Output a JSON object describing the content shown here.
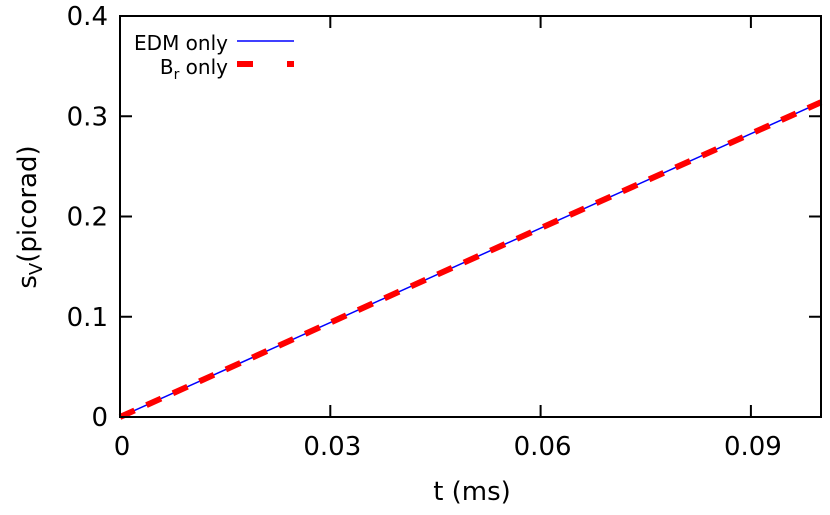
{
  "chart_data": {
    "type": "line",
    "xlabel": "t (ms)",
    "ylabel_main": "s",
    "ylabel_sub": "V",
    "ylabel_rest": "(picorad)",
    "xlim": [
      0,
      0.1
    ],
    "ylim": [
      0,
      0.4
    ],
    "xticks": [
      0,
      0.03,
      0.06,
      0.09
    ],
    "xtick_labels": [
      "0",
      "0.03",
      "0.06",
      "0.09"
    ],
    "yticks": [
      0,
      0.1,
      0.2,
      0.3,
      0.4
    ],
    "ytick_labels": [
      "0",
      "0.1",
      "0.2",
      "0.3",
      "0.4"
    ],
    "grid": false,
    "legend_position": "top-left",
    "series": [
      {
        "name": "EDM only",
        "name_main": "EDM only",
        "color": "#0000ff",
        "style": "solid",
        "x": [
          0,
          0.1
        ],
        "y": [
          0,
          0.314
        ]
      },
      {
        "name": "Br only",
        "name_main": "B",
        "name_sub": "r",
        "name_rest": " only",
        "color": "#ff0000",
        "style": "dashed",
        "x": [
          0,
          0.1
        ],
        "y": [
          0,
          0.314
        ]
      }
    ]
  }
}
